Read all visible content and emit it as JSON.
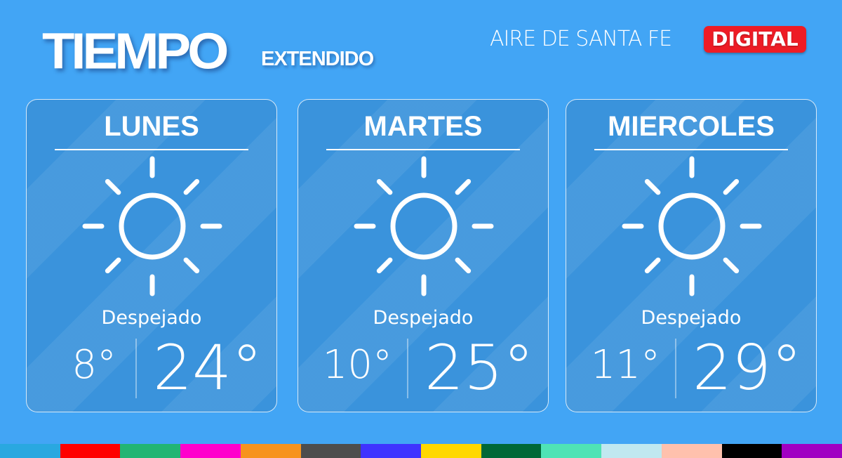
{
  "header": {
    "title": "TIEMPO",
    "subtitle": "EXTENDIDO",
    "brand": "AIRE DE SANTA FE",
    "badge": "DIGITAL"
  },
  "colors": {
    "background": "#42a5f5",
    "badge": "#ee1c25"
  },
  "days": [
    {
      "name": "LUNES",
      "icon": "sun-icon",
      "condition": "Despejado",
      "min": "8°",
      "max": "24°"
    },
    {
      "name": "MARTES",
      "icon": "sun-icon",
      "condition": "Despejado",
      "min": "10°",
      "max": "25°"
    },
    {
      "name": "MIERCOLES",
      "icon": "sun-icon",
      "condition": "Despejado",
      "min": "11°",
      "max": "29°"
    }
  ],
  "stripe_colors": [
    "#29a8e0",
    "#ff0000",
    "#22b573",
    "#ff00cc",
    "#f7931e",
    "#4d4d4d",
    "#3f33ff",
    "#ffd800",
    "#006837",
    "#4fe3b5",
    "#c0e8f0",
    "#ffc1ad",
    "#000000",
    "#a100c2"
  ]
}
